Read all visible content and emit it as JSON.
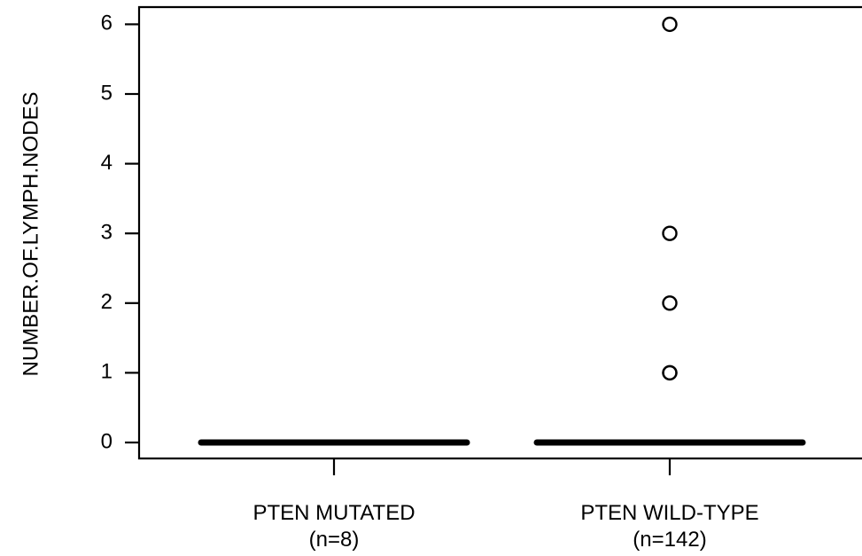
{
  "chart_data": {
    "type": "box",
    "ylabel": "NUMBER.OF.LYMPH.NODES",
    "ylim": [
      0,
      6
    ],
    "yticks": [
      0,
      1,
      2,
      3,
      4,
      5,
      6
    ],
    "grid": false,
    "categories": [
      {
        "label": "PTEN MUTATED",
        "n_label": "(n=8)"
      },
      {
        "label": "PTEN WILD-TYPE",
        "n_label": "(n=142)"
      }
    ],
    "boxes": [
      {
        "category": "PTEN MUTATED",
        "min": 0,
        "q1": 0,
        "median": 0,
        "q3": 0,
        "max": 0,
        "outliers": []
      },
      {
        "category": "PTEN WILD-TYPE",
        "min": 0,
        "q1": 0,
        "median": 0,
        "q3": 0,
        "max": 0,
        "outliers": [
          1,
          1,
          2,
          3,
          6
        ]
      }
    ]
  }
}
